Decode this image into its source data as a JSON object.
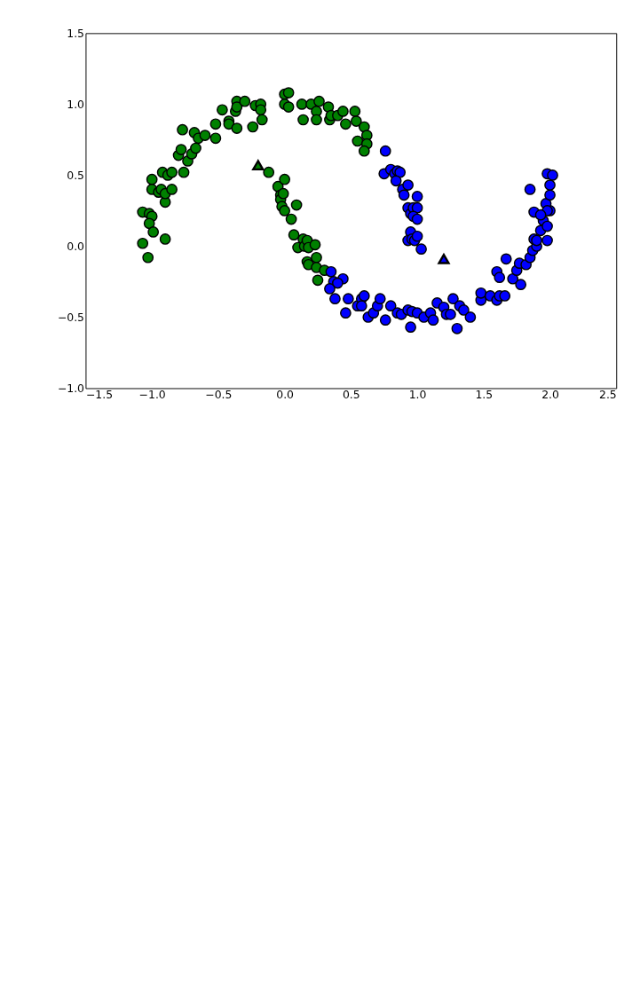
{
  "chart_data": {
    "type": "scatter",
    "xlim": [
      -1.5,
      2.5
    ],
    "ylim": [
      -1.0,
      1.5
    ],
    "xticks": [
      {
        "value": -1.5,
        "label": "−1.5"
      },
      {
        "value": -1.0,
        "label": "−1.0"
      },
      {
        "value": -0.5,
        "label": "−0.5"
      },
      {
        "value": 0.0,
        "label": "0.0"
      },
      {
        "value": 0.5,
        "label": "0.5"
      },
      {
        "value": 1.0,
        "label": "1.0"
      },
      {
        "value": 1.5,
        "label": "1.5"
      },
      {
        "value": 2.0,
        "label": "2.0"
      },
      {
        "value": 2.5,
        "label": "2.5"
      }
    ],
    "yticks": [
      {
        "value": -1.0,
        "label": "−1.0"
      },
      {
        "value": -0.5,
        "label": "−0.5"
      },
      {
        "value": 0.0,
        "label": "0.0"
      },
      {
        "value": 0.5,
        "label": "0.5"
      },
      {
        "value": 1.0,
        "label": "1.0"
      },
      {
        "value": 1.5,
        "label": "1.5"
      }
    ],
    "grid": false,
    "series": [
      {
        "color": "#008000",
        "marker": "circle",
        "x": [
          -1.07,
          -1.02,
          -1.0,
          -1.02,
          -0.99,
          -1.07,
          -1.03,
          -0.9,
          -1.0,
          -1.0,
          -0.95,
          -0.93,
          -0.9,
          -0.9,
          -0.92,
          -0.88,
          -0.85,
          -0.85,
          -0.8,
          -0.78,
          -0.77,
          -0.76,
          -0.73,
          -0.7,
          -0.68,
          -0.67,
          -0.65,
          -0.6,
          -0.52,
          -0.52,
          -0.47,
          -0.42,
          -0.42,
          -0.37,
          -0.36,
          -0.36,
          -0.36,
          -0.3,
          -0.24,
          -0.22,
          -0.18,
          -0.18,
          -0.17,
          0.0,
          0.03,
          0.0,
          0.03,
          0.13,
          0.14,
          0.2,
          0.24,
          0.24,
          0.26,
          0.33,
          0.34,
          0.35,
          0.4,
          0.44,
          0.46,
          0.53,
          0.54,
          0.55,
          0.6,
          0.62,
          0.62,
          0.6,
          -0.12,
          -0.05,
          -0.03,
          -0.03,
          0.0,
          -0.01,
          -0.02,
          0.0,
          0.05,
          0.09,
          0.07,
          0.1,
          0.14,
          0.15,
          0.17,
          0.18,
          0.17,
          0.18,
          0.23,
          0.24,
          0.24,
          0.25,
          0.3
        ],
        "values": [
          0.24,
          0.23,
          0.21,
          0.16,
          0.1,
          0.02,
          -0.08,
          0.05,
          0.47,
          0.4,
          0.38,
          0.4,
          0.31,
          0.37,
          0.52,
          0.5,
          0.4,
          0.52,
          0.64,
          0.68,
          0.82,
          0.52,
          0.6,
          0.65,
          0.8,
          0.69,
          0.76,
          0.78,
          0.76,
          0.86,
          0.96,
          0.88,
          0.86,
          0.95,
          1.02,
          0.98,
          0.83,
          1.02,
          0.84,
          0.99,
          1.0,
          0.96,
          0.89,
          1.07,
          1.08,
          1.0,
          0.98,
          1.0,
          0.89,
          1.0,
          0.95,
          0.89,
          1.02,
          0.98,
          0.89,
          0.92,
          0.92,
          0.95,
          0.86,
          0.95,
          0.88,
          0.74,
          0.84,
          0.78,
          0.72,
          0.67,
          0.52,
          0.42,
          0.36,
          0.33,
          0.47,
          0.37,
          0.28,
          0.25,
          0.19,
          0.29,
          0.08,
          -0.01,
          0.05,
          0.0,
          0.04,
          -0.01,
          -0.11,
          -0.13,
          0.01,
          -0.08,
          -0.15,
          -0.24,
          -0.17
        ]
      },
      {
        "color": "#0000ff",
        "marker": "circle",
        "x": [
          0.76,
          0.75,
          0.8,
          0.83,
          0.85,
          0.87,
          0.84,
          0.89,
          0.9,
          0.93,
          0.93,
          0.95,
          0.97,
          1.0,
          1.0,
          0.97,
          1.0,
          0.95,
          0.93,
          0.96,
          0.98,
          1.0,
          1.03,
          0.35,
          0.37,
          0.44,
          0.4,
          0.34,
          0.38,
          0.46,
          0.48,
          0.55,
          0.58,
          0.58,
          0.6,
          0.63,
          0.67,
          0.7,
          0.72,
          0.76,
          0.8,
          0.85,
          0.88,
          0.93,
          0.95,
          0.96,
          1.0,
          1.05,
          1.1,
          1.12,
          1.15,
          1.2,
          1.22,
          1.25,
          1.27,
          1.3,
          1.32,
          1.35,
          1.4,
          1.48,
          1.48,
          1.55,
          1.6,
          1.62,
          1.66,
          1.6,
          1.62,
          1.67,
          1.72,
          1.75,
          1.77,
          1.78,
          1.82,
          1.85,
          1.87,
          1.9,
          1.88,
          1.9,
          1.93,
          1.95,
          1.98,
          1.98,
          2.0,
          1.97,
          1.98,
          1.88,
          1.93,
          2.0,
          2.0,
          1.98,
          2.02,
          1.85
        ],
        "values": [
          0.67,
          0.51,
          0.54,
          0.51,
          0.53,
          0.52,
          0.46,
          0.4,
          0.36,
          0.43,
          0.27,
          0.23,
          0.27,
          0.35,
          0.27,
          0.21,
          0.19,
          0.1,
          0.04,
          0.05,
          0.04,
          0.07,
          -0.02,
          -0.18,
          -0.25,
          -0.23,
          -0.26,
          -0.3,
          -0.37,
          -0.47,
          -0.37,
          -0.42,
          -0.37,
          -0.42,
          -0.35,
          -0.5,
          -0.47,
          -0.42,
          -0.37,
          -0.52,
          -0.42,
          -0.47,
          -0.48,
          -0.45,
          -0.57,
          -0.46,
          -0.47,
          -0.5,
          -0.47,
          -0.52,
          -0.4,
          -0.43,
          -0.48,
          -0.48,
          -0.37,
          -0.58,
          -0.42,
          -0.45,
          -0.5,
          -0.38,
          -0.33,
          -0.35,
          -0.38,
          -0.35,
          -0.35,
          -0.18,
          -0.22,
          -0.09,
          -0.23,
          -0.17,
          -0.12,
          -0.27,
          -0.13,
          -0.08,
          -0.03,
          0.0,
          0.05,
          0.04,
          0.11,
          0.18,
          0.04,
          0.14,
          0.25,
          0.3,
          0.25,
          0.24,
          0.22,
          0.36,
          0.43,
          0.51,
          0.5,
          0.4
        ]
      },
      {
        "marker": "triangle",
        "x": [
          -0.2,
          1.2
        ],
        "values": [
          0.57,
          -0.09
        ],
        "colors": [
          "#008000",
          "#0000ff"
        ]
      }
    ]
  }
}
